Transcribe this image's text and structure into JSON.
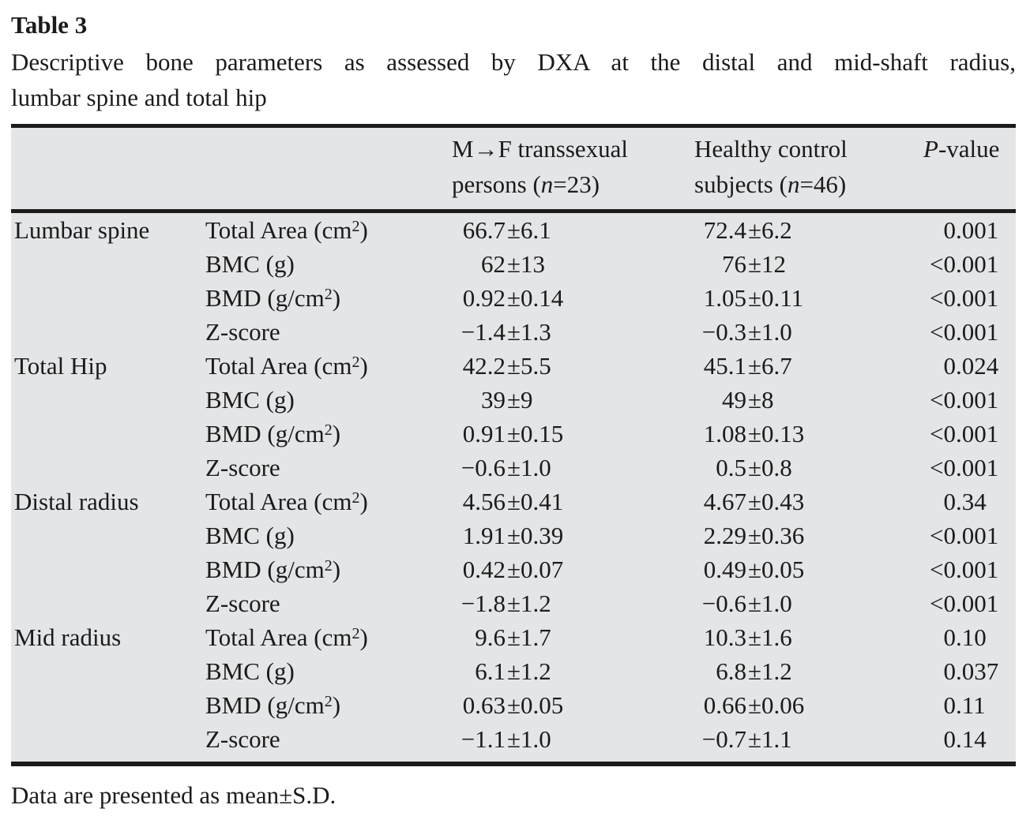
{
  "title": "Table 3",
  "caption": {
    "line1": "Descriptive bone parameters as assessed by DXA at the distal and mid-shaft radius,",
    "line2": "lumbar spine and total hip"
  },
  "header": {
    "col_mf": {
      "line1": "M→F transsexual",
      "line2_pre": "persons (",
      "n": "n",
      "line2_post": "=23)"
    },
    "col_hc": {
      "line1": "Healthy control",
      "line2_pre": "subjects (",
      "n": "n",
      "line2_post": "=46)"
    },
    "col_p": {
      "italic": "P",
      "rest": "-value"
    }
  },
  "rows": [
    {
      "group": "Lumbar spine",
      "param": "Total Area (cm",
      "param_sup": "2",
      "param_end": ")",
      "v1_pre": "66.7",
      "v1_post": "±6.1",
      "v2_pre": "72.4",
      "v2_post": "±6.2",
      "p_pre": "0",
      "p_post": ".001"
    },
    {
      "group": "",
      "param": "BMC (g)",
      "param_sup": "",
      "param_end": "",
      "v1_pre": "62",
      "v1_post": "±13",
      "v2_pre": "76",
      "v2_post": "±12",
      "p_pre": "<0",
      "p_post": ".001"
    },
    {
      "group": "",
      "param": "BMD (g/cm",
      "param_sup": "2",
      "param_end": ")",
      "v1_pre": "0.92",
      "v1_post": "±0.14",
      "v2_pre": "1.05",
      "v2_post": "±0.11",
      "p_pre": "<0",
      "p_post": ".001"
    },
    {
      "group": "",
      "param": "Z-score",
      "param_sup": "",
      "param_end": "",
      "v1_pre": "−1.4",
      "v1_post": "±1.3",
      "v2_pre": "−0.3",
      "v2_post": "±1.0",
      "p_pre": "<0",
      "p_post": ".001"
    },
    {
      "group": "Total Hip",
      "param": "Total Area (cm",
      "param_sup": "2",
      "param_end": ")",
      "v1_pre": "42.2",
      "v1_post": "±5.5",
      "v2_pre": "45.1",
      "v2_post": "±6.7",
      "p_pre": "0",
      "p_post": ".024"
    },
    {
      "group": "",
      "param": "BMC (g)",
      "param_sup": "",
      "param_end": "",
      "v1_pre": "39",
      "v1_post": "±9",
      "v2_pre": "49",
      "v2_post": "±8",
      "p_pre": "<0",
      "p_post": ".001"
    },
    {
      "group": "",
      "param": "BMD (g/cm",
      "param_sup": "2",
      "param_end": ")",
      "v1_pre": "0.91",
      "v1_post": "±0.15",
      "v2_pre": "1.08",
      "v2_post": "±0.13",
      "p_pre": "<0",
      "p_post": ".001"
    },
    {
      "group": "",
      "param": "Z-score",
      "param_sup": "",
      "param_end": "",
      "v1_pre": "−0.6",
      "v1_post": "±1.0",
      "v2_pre": "0.5",
      "v2_post": "±0.8",
      "p_pre": "<0",
      "p_post": ".001"
    },
    {
      "group": "Distal radius",
      "param": "Total Area (cm",
      "param_sup": "2",
      "param_end": ")",
      "v1_pre": "4.56",
      "v1_post": "±0.41",
      "v2_pre": "4.67",
      "v2_post": "±0.43",
      "p_pre": "0",
      "p_post": ".34"
    },
    {
      "group": "",
      "param": "BMC (g)",
      "param_sup": "",
      "param_end": "",
      "v1_pre": "1.91",
      "v1_post": "±0.39",
      "v2_pre": "2.29",
      "v2_post": "±0.36",
      "p_pre": "<0",
      "p_post": ".001"
    },
    {
      "group": "",
      "param": "BMD (g/cm",
      "param_sup": "2",
      "param_end": ")",
      "v1_pre": "0.42",
      "v1_post": "±0.07",
      "v2_pre": "0.49",
      "v2_post": "±0.05",
      "p_pre": "<0",
      "p_post": ".001"
    },
    {
      "group": "",
      "param": "Z-score",
      "param_sup": "",
      "param_end": "",
      "v1_pre": "−1.8",
      "v1_post": "±1.2",
      "v2_pre": "−0.6",
      "v2_post": "±1.0",
      "p_pre": "<0",
      "p_post": ".001"
    },
    {
      "group": "Mid radius",
      "param": "Total Area (cm",
      "param_sup": "2",
      "param_end": ")",
      "v1_pre": "9.6",
      "v1_post": "±1.7",
      "v2_pre": "10.3",
      "v2_post": "±1.6",
      "p_pre": "0",
      "p_post": ".10"
    },
    {
      "group": "",
      "param": "BMC (g)",
      "param_sup": "",
      "param_end": "",
      "v1_pre": "6.1",
      "v1_post": "±1.2",
      "v2_pre": "6.8",
      "v2_post": "±1.2",
      "p_pre": "0",
      "p_post": ".037"
    },
    {
      "group": "",
      "param": "BMD (g/cm",
      "param_sup": "2",
      "param_end": ")",
      "v1_pre": "0.63",
      "v1_post": "±0.05",
      "v2_pre": "0.66",
      "v2_post": "±0.06",
      "p_pre": "0",
      "p_post": ".11"
    },
    {
      "group": "",
      "param": "Z-score",
      "param_sup": "",
      "param_end": "",
      "v1_pre": "−1.1",
      "v1_post": "±1.0",
      "v2_pre": "−0.7",
      "v2_post": "±1.1",
      "p_pre": "0",
      "p_post": ".14"
    }
  ],
  "footnote": "Data are presented as mean±S.D."
}
